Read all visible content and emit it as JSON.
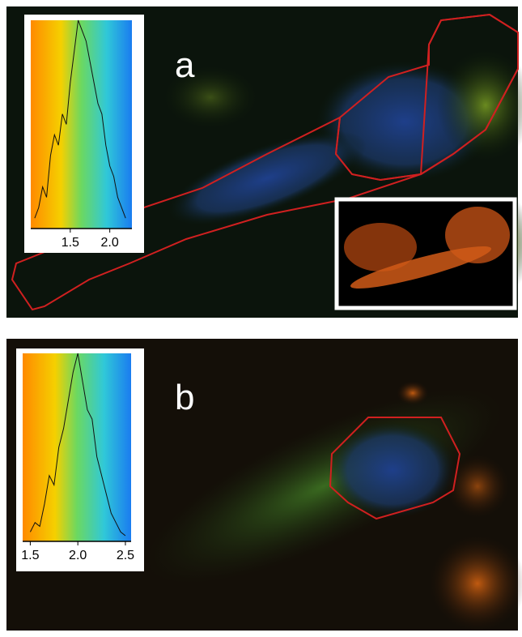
{
  "panels": [
    {
      "label": "a",
      "histogram": {
        "type": "line",
        "x": [
          1.05,
          1.1,
          1.15,
          1.2,
          1.25,
          1.3,
          1.35,
          1.4,
          1.45,
          1.5,
          1.55,
          1.6,
          1.65,
          1.7,
          1.75,
          1.8,
          1.85,
          1.9,
          1.95,
          2.0,
          2.05,
          2.1,
          2.15,
          2.2
        ],
        "values": [
          5,
          10,
          20,
          15,
          35,
          45,
          40,
          55,
          50,
          70,
          85,
          100,
          95,
          90,
          80,
          70,
          60,
          55,
          40,
          30,
          25,
          15,
          10,
          5
        ],
        "xlim": [
          1.0,
          2.28
        ],
        "ylim": [
          0,
          100
        ],
        "xticks": [
          1.5,
          {
            "value": 2,
            "label": "2.0"
          }
        ]
      }
    },
    {
      "label": "b",
      "histogram": {
        "type": "line",
        "x": [
          1.5,
          1.55,
          1.6,
          1.65,
          1.7,
          1.75,
          1.8,
          1.85,
          1.9,
          1.95,
          2.0,
          2.05,
          2.1,
          2.15,
          2.2,
          2.25,
          2.3,
          2.35,
          2.4,
          2.45,
          2.5
        ],
        "values": [
          5,
          10,
          8,
          20,
          35,
          30,
          50,
          60,
          75,
          90,
          100,
          85,
          70,
          65,
          45,
          35,
          25,
          15,
          10,
          5,
          3
        ],
        "xlim": [
          1.42,
          2.56
        ],
        "ylim": [
          0,
          100
        ],
        "xticks": [
          1.5,
          {
            "value": 2,
            "label": "2.0"
          },
          2.5
        ]
      }
    }
  ]
}
